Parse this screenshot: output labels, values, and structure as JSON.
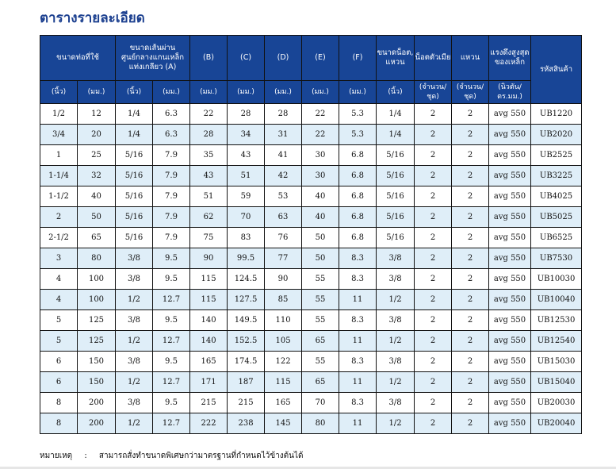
{
  "title": "ตารางรายละเอียด",
  "headers": {
    "pipe_size": "ขนาดท่อที่ใช้",
    "a": "ขนาดเส้นผ่านศูนย์กลางแกนเหล็กแท่งเกลียว (A)",
    "b": "(B)",
    "c": "(C)",
    "d": "(D)",
    "e": "(E)",
    "f": "(F)",
    "bolt": "ขนาดน็อต, แหวน",
    "nut": "น็อตตัวเมีย",
    "washer": "แหวน",
    "tensile": "แรงดึงสูงสุดของเหล็ก",
    "code": "รหัสสินค้า"
  },
  "units": [
    "(นิ้ว)",
    "(มม.)",
    "(นิ้ว)",
    "(มม.)",
    "(มม.)",
    "(มม.)",
    "(มม.)",
    "(มม.)",
    "(มม.)",
    "(นิ้ว)",
    "(จำนวน/ชุด)",
    "(จำนวน/ชุด)",
    "(นิวตัน/ตร.มม.)"
  ],
  "rows": [
    [
      "1/2",
      "12",
      "1/4",
      "6.3",
      "22",
      "28",
      "28",
      "22",
      "5.3",
      "1/4",
      "2",
      "2",
      "avg  550",
      "UB1220"
    ],
    [
      "3/4",
      "20",
      "1/4",
      "6.3",
      "28",
      "34",
      "31",
      "22",
      "5.3",
      "1/4",
      "2",
      "2",
      "avg  550",
      "UB2020"
    ],
    [
      "1",
      "25",
      "5/16",
      "7.9",
      "35",
      "43",
      "41",
      "30",
      "6.8",
      "5/16",
      "2",
      "2",
      "avg  550",
      "UB2525"
    ],
    [
      "1-1/4",
      "32",
      "5/16",
      "7.9",
      "43",
      "51",
      "42",
      "30",
      "6.8",
      "5/16",
      "2",
      "2",
      "avg  550",
      "UB3225"
    ],
    [
      "1-1/2",
      "40",
      "5/16",
      "7.9",
      "51",
      "59",
      "53",
      "40",
      "6.8",
      "5/16",
      "2",
      "2",
      "avg  550",
      "UB4025"
    ],
    [
      "2",
      "50",
      "5/16",
      "7.9",
      "62",
      "70",
      "63",
      "40",
      "6.8",
      "5/16",
      "2",
      "2",
      "avg  550",
      "UB5025"
    ],
    [
      "2-1/2",
      "65",
      "5/16",
      "7.9",
      "75",
      "83",
      "76",
      "50",
      "6.8",
      "5/16",
      "2",
      "2",
      "avg  550",
      "UB6525"
    ],
    [
      "3",
      "80",
      "3/8",
      "9.5",
      "90",
      "99.5",
      "77",
      "50",
      "8.3",
      "3/8",
      "2",
      "2",
      "avg  550",
      "UB7530"
    ],
    [
      "4",
      "100",
      "3/8",
      "9.5",
      "115",
      "124.5",
      "90",
      "55",
      "8.3",
      "3/8",
      "2",
      "2",
      "avg  550",
      "UB10030"
    ],
    [
      "4",
      "100",
      "1/2",
      "12.7",
      "115",
      "127.5",
      "85",
      "55",
      "11",
      "1/2",
      "2",
      "2",
      "avg  550",
      "UB10040"
    ],
    [
      "5",
      "125",
      "3/8",
      "9.5",
      "140",
      "149.5",
      "110",
      "55",
      "8.3",
      "3/8",
      "2",
      "2",
      "avg  550",
      "UB12530"
    ],
    [
      "5",
      "125",
      "1/2",
      "12.7",
      "140",
      "152.5",
      "105",
      "65",
      "11",
      "1/2",
      "2",
      "2",
      "avg  550",
      "UB12540"
    ],
    [
      "6",
      "150",
      "3/8",
      "9.5",
      "165",
      "174.5",
      "122",
      "55",
      "8.3",
      "3/8",
      "2",
      "2",
      "avg  550",
      "UB15030"
    ],
    [
      "6",
      "150",
      "1/2",
      "12.7",
      "171",
      "187",
      "115",
      "65",
      "11",
      "1/2",
      "2",
      "2",
      "avg  550",
      "UB15040"
    ],
    [
      "8",
      "200",
      "3/8",
      "9.5",
      "215",
      "215",
      "165",
      "70",
      "8.3",
      "3/8",
      "2",
      "2",
      "avg  550",
      "UB20030"
    ],
    [
      "8",
      "200",
      "1/2",
      "12.7",
      "222",
      "238",
      "145",
      "80",
      "11",
      "1/2",
      "2",
      "2",
      "avg  550",
      "UB20040"
    ]
  ],
  "note": {
    "label": "หมายเหตุ",
    "sep": ":",
    "text": "สามารถสั่งทำขนาดพิเศษกว่ามาตรฐานที่กำหนดไว้ข้างต้นได้"
  }
}
